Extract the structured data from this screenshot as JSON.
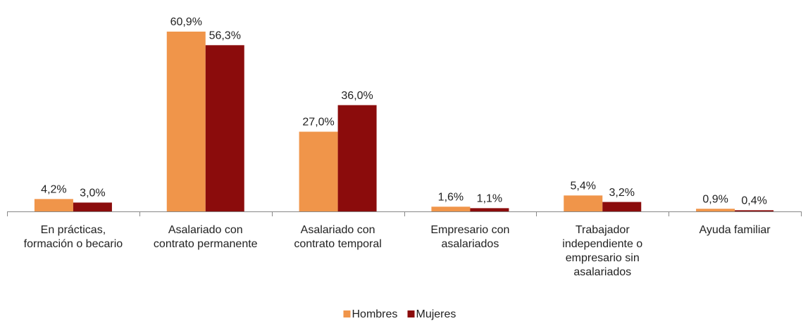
{
  "chart_data": {
    "type": "bar",
    "categories": [
      "En prácticas, formación o becario",
      "Asalariado con contrato permanente",
      "Asalariado con contrato temporal",
      "Empresario con asalariados",
      "Trabajador independiente o empresario sin asalariados",
      "Ayuda familiar"
    ],
    "series": [
      {
        "name": "Hombres",
        "color": "#f0954a",
        "values": [
          4.2,
          60.9,
          27.0,
          1.6,
          5.4,
          0.9
        ],
        "value_labels": [
          "4,2%",
          "60,9%",
          "27,0%",
          "1,6%",
          "5,4%",
          "0,9%"
        ]
      },
      {
        "name": "Mujeres",
        "color": "#8b0c0c",
        "values": [
          3.0,
          56.3,
          36.0,
          1.1,
          3.2,
          0.4
        ],
        "value_labels": [
          "3,0%",
          "56,3%",
          "36,0%",
          "1,1%",
          "3,2%",
          "0,4%"
        ]
      }
    ],
    "legend": "bottom"
  }
}
